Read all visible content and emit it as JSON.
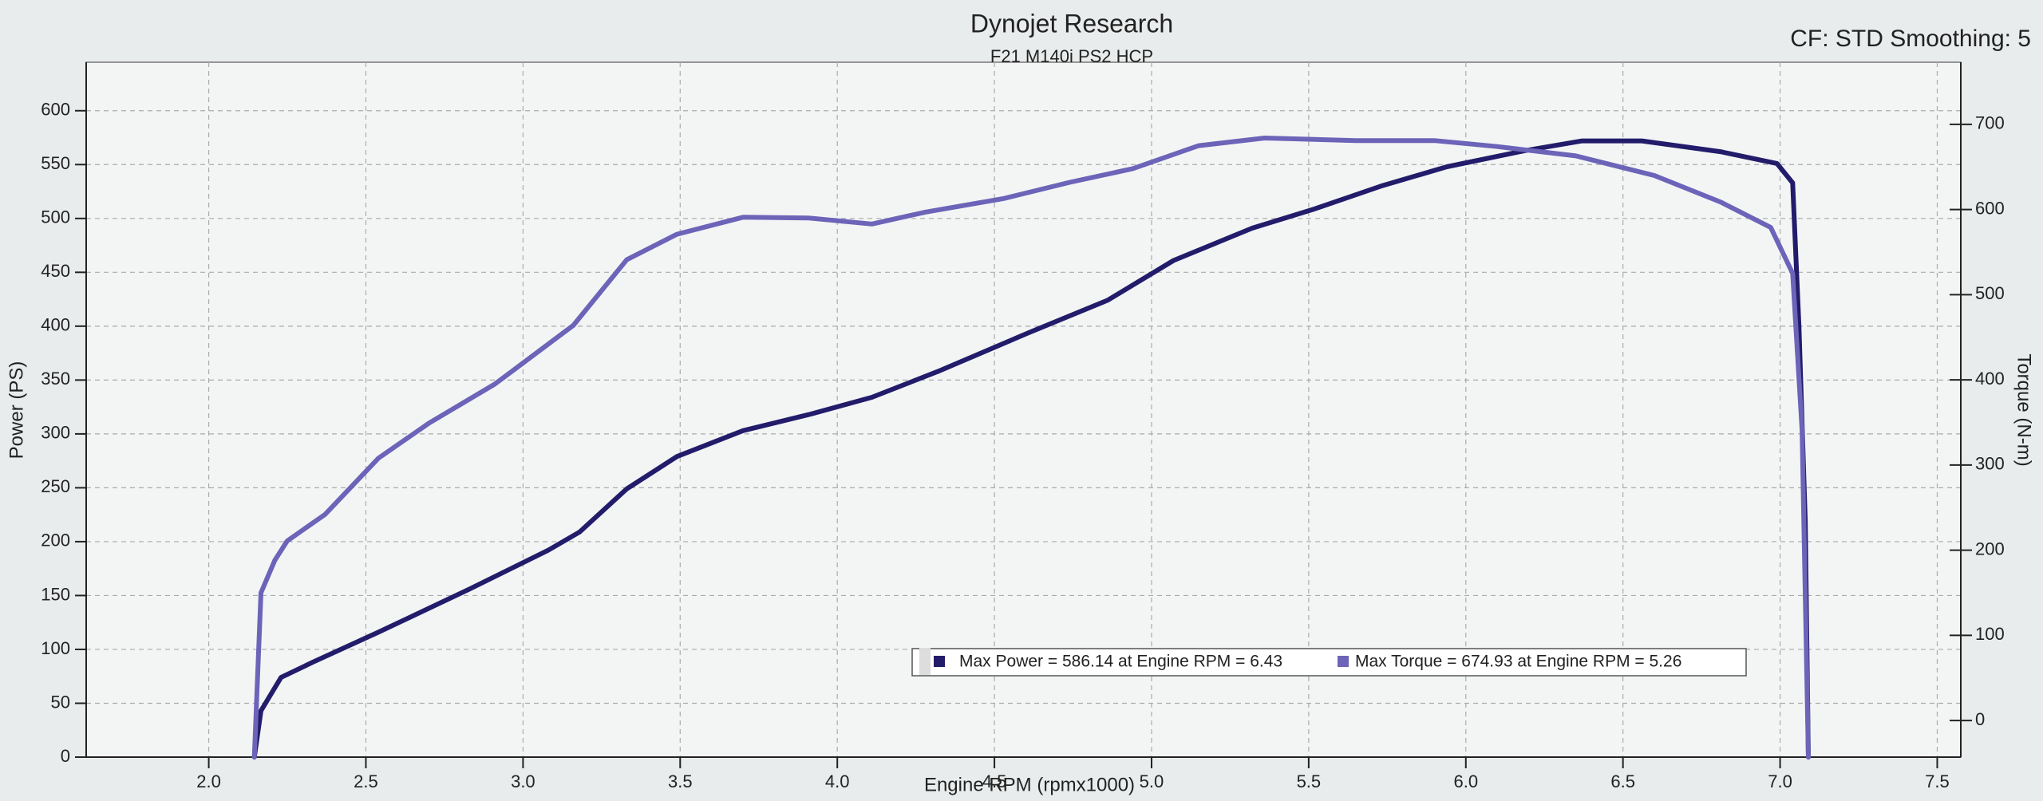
{
  "chart_data": {
    "type": "line",
    "title": "Dynojet Research",
    "subtitle": "F21 M140i PS2 HCP",
    "corner_text": "CF: STD Smoothing: 5",
    "xlabel": "Engine RPM (rpmx1000)",
    "ylabel": "Power (PS)",
    "y2label": "Torque (N-m)",
    "annotations": [
      "Max Power = 586.14 at Engine RPM = 6.43",
      "Max Torque = 674.93 at Engine RPM = 5.26"
    ],
    "xlim": [
      1.61,
      7.575
    ],
    "ylim": [
      0,
      645
    ],
    "y2lim": [
      -43,
      773
    ],
    "xticks": [
      {
        "value": 2.0,
        "label": "2.0"
      },
      {
        "value": 2.5,
        "label": "2.5"
      },
      {
        "value": 3.0,
        "label": "3.0"
      },
      {
        "value": 3.5,
        "label": "3.5"
      },
      {
        "value": 4.0,
        "label": "4.0"
      },
      {
        "value": 4.5,
        "label": "4.5"
      },
      {
        "value": 5.0,
        "label": "5.0"
      },
      {
        "value": 5.5,
        "label": "5.5"
      },
      {
        "value": 6.0,
        "label": "6.0"
      },
      {
        "value": 6.5,
        "label": "6.5"
      },
      {
        "value": 7.0,
        "label": "7.0"
      },
      {
        "value": 7.5,
        "label": "7.5"
      }
    ],
    "yticks": [
      0,
      50,
      100,
      150,
      200,
      250,
      300,
      350,
      400,
      450,
      500,
      550,
      600
    ],
    "y2ticks": [
      0,
      100,
      200,
      300,
      400,
      500,
      600,
      700
    ],
    "grid": true,
    "series": [
      {
        "color": "#221c6b",
        "x": [
          2.145,
          2.166,
          2.23,
          2.33,
          2.54,
          2.83,
          3.08,
          3.18,
          3.33,
          3.49,
          3.7,
          3.91,
          4.11,
          4.32,
          4.61,
          4.86,
          5.07,
          5.32,
          5.52,
          5.73,
          5.94,
          6.19,
          6.37,
          6.56,
          6.81,
          6.99,
          7.04,
          7.06,
          7.08,
          7.09
        ],
        "values": [
          0,
          43,
          74,
          88,
          116,
          156,
          192,
          209,
          249,
          279,
          303,
          318,
          334,
          358,
          394,
          424,
          461,
          491,
          509,
          530,
          548,
          563,
          572,
          572,
          562,
          551,
          533,
          400,
          219,
          0
        ]
      },
      {
        "color": "#6c64b8",
        "axis": "y2",
        "x": [
          2.145,
          2.166,
          2.21,
          2.25,
          2.37,
          2.54,
          2.7,
          2.91,
          3.16,
          3.33,
          3.49,
          3.7,
          3.91,
          4.11,
          4.28,
          4.53,
          4.74,
          4.94,
          5.15,
          5.36,
          5.65,
          5.9,
          6.1,
          6.35,
          6.6,
          6.81,
          6.97,
          7.04,
          7.07,
          7.09
        ],
        "values": [
          -43,
          150,
          188,
          211,
          242,
          308,
          349,
          395,
          464,
          541,
          571,
          591,
          590,
          583,
          597,
          613,
          632,
          648,
          675,
          684,
          681,
          681,
          674,
          663,
          640,
          609,
          579,
          525,
          341,
          -43
        ]
      }
    ]
  }
}
